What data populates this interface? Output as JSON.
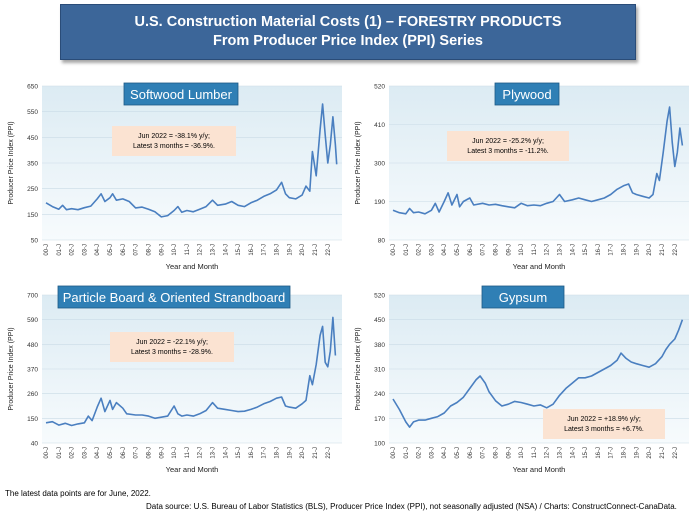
{
  "header": {
    "title_line1": "U.S. Construction Material Costs (1) – FORESTRY PRODUCTS",
    "title_line2": "From Producer Price Index (PPI) Series"
  },
  "footer": {
    "note": "The latest data points are for June, 2022.",
    "source": "Data source: U.S. Bureau of Labor Statistics (BLS), Producer Price Index (PPI), not seasonally adjusted (NSA) / Charts: ConstructConnect-CanaData."
  },
  "colors": {
    "banner": "#3c6699",
    "line": "#4a7fc0",
    "plot_top": "#dcebf3",
    "plot_bottom": "#f7fbfd",
    "title_box": "#2f7fb5",
    "callout": "#fbe3d2"
  },
  "chart_data": [
    {
      "type": "line",
      "title": "Softwood Lumber",
      "xlabel": "Year and Month",
      "ylabel": "Producer Price Index (PPI)",
      "ylim": [
        50,
        650
      ],
      "yticks": [
        "50",
        "150",
        "250",
        "350",
        "450",
        "550",
        "650"
      ],
      "xticks": [
        "00-J",
        "01-J",
        "02-J",
        "03-J",
        "04-J",
        "05-J",
        "06-J",
        "07-J",
        "08-J",
        "09-J",
        "10-J",
        "11-J",
        "12-J",
        "13-J",
        "14-J",
        "15-J",
        "16-J",
        "17-J",
        "18-J",
        "19-J",
        "20-J",
        "21-J",
        "22-J"
      ],
      "callout": [
        "Jun 2022 = -38.1% y/y;",
        "Latest 3 months = -36.9%."
      ],
      "grid": true,
      "series": [
        {
          "values": [
            [
              0,
              195
            ],
            [
              0.5,
              180
            ],
            [
              1,
              170
            ],
            [
              1.3,
              185
            ],
            [
              1.6,
              168
            ],
            [
              2,
              172
            ],
            [
              2.5,
              168
            ],
            [
              3,
              176
            ],
            [
              3.5,
              182
            ],
            [
              4,
              210
            ],
            [
              4.3,
              230
            ],
            [
              4.6,
              200
            ],
            [
              5,
              215
            ],
            [
              5.2,
              230
            ],
            [
              5.5,
              205
            ],
            [
              6,
              210
            ],
            [
              6.5,
              200
            ],
            [
              7,
              175
            ],
            [
              7.5,
              178
            ],
            [
              8,
              170
            ],
            [
              8.5,
              160
            ],
            [
              9,
              140
            ],
            [
              9.5,
              145
            ],
            [
              10,
              165
            ],
            [
              10.3,
              180
            ],
            [
              10.6,
              158
            ],
            [
              11,
              165
            ],
            [
              11.5,
              160
            ],
            [
              12,
              170
            ],
            [
              12.5,
              180
            ],
            [
              13,
              205
            ],
            [
              13.4,
              185
            ],
            [
              14,
              190
            ],
            [
              14.5,
              200
            ],
            [
              15,
              185
            ],
            [
              15.5,
              180
            ],
            [
              16,
              195
            ],
            [
              16.5,
              205
            ],
            [
              17,
              220
            ],
            [
              17.5,
              230
            ],
            [
              18,
              245
            ],
            [
              18.4,
              275
            ],
            [
              18.7,
              230
            ],
            [
              19,
              215
            ],
            [
              19.5,
              210
            ],
            [
              20,
              225
            ],
            [
              20.3,
              260
            ],
            [
              20.6,
              240
            ],
            [
              20.8,
              395
            ],
            [
              21.1,
              300
            ],
            [
              21.4,
              480
            ],
            [
              21.6,
              580
            ],
            [
              21.8,
              460
            ],
            [
              22,
              350
            ],
            [
              22.2,
              420
            ],
            [
              22.4,
              530
            ],
            [
              22.6,
              420
            ],
            [
              22.7,
              345
            ]
          ]
        }
      ]
    },
    {
      "type": "line",
      "title": "Plywood",
      "xlabel": "Year and Month",
      "ylabel": "Producer Price Index (PPI)",
      "ylim": [
        80,
        520
      ],
      "yticks": [
        "80",
        "190",
        "300",
        "410",
        "520"
      ],
      "xticks": [
        "00-J",
        "01-J",
        "02-J",
        "03-J",
        "04-J",
        "05-J",
        "06-J",
        "07-J",
        "08-J",
        "09-J",
        "10-J",
        "11-J",
        "12-J",
        "13-J",
        "14-J",
        "15-J",
        "16-J",
        "17-J",
        "18-J",
        "19-J",
        "20-J",
        "21-J",
        "22-J"
      ],
      "callout": [
        "Jun 2022 = -25.2% y/y;",
        "Latest 3 months = -11.2%."
      ],
      "grid": true,
      "series": [
        {
          "values": [
            [
              0,
              165
            ],
            [
              0.5,
              158
            ],
            [
              1,
              155
            ],
            [
              1.3,
              170
            ],
            [
              1.6,
              158
            ],
            [
              2,
              160
            ],
            [
              2.5,
              155
            ],
            [
              3,
              165
            ],
            [
              3.3,
              185
            ],
            [
              3.6,
              160
            ],
            [
              4,
              190
            ],
            [
              4.3,
              215
            ],
            [
              4.6,
              180
            ],
            [
              5,
              210
            ],
            [
              5.2,
              175
            ],
            [
              5.5,
              190
            ],
            [
              6,
              200
            ],
            [
              6.3,
              180
            ],
            [
              7,
              185
            ],
            [
              7.5,
              180
            ],
            [
              8,
              182
            ],
            [
              8.5,
              178
            ],
            [
              9,
              175
            ],
            [
              9.5,
              172
            ],
            [
              10,
              185
            ],
            [
              10.5,
              178
            ],
            [
              11,
              180
            ],
            [
              11.5,
              178
            ],
            [
              12,
              185
            ],
            [
              12.5,
              190
            ],
            [
              13,
              210
            ],
            [
              13.4,
              190
            ],
            [
              14,
              195
            ],
            [
              14.5,
              200
            ],
            [
              15,
              195
            ],
            [
              15.5,
              190
            ],
            [
              16,
              195
            ],
            [
              16.5,
              200
            ],
            [
              17,
              210
            ],
            [
              17.5,
              225
            ],
            [
              18,
              235
            ],
            [
              18.4,
              240
            ],
            [
              18.7,
              215
            ],
            [
              19,
              210
            ],
            [
              19.5,
              205
            ],
            [
              20,
              200
            ],
            [
              20.3,
              210
            ],
            [
              20.6,
              270
            ],
            [
              20.8,
              250
            ],
            [
              21.1,
              330
            ],
            [
              21.4,
              420
            ],
            [
              21.6,
              460
            ],
            [
              21.8,
              360
            ],
            [
              22,
              290
            ],
            [
              22.2,
              330
            ],
            [
              22.4,
              400
            ],
            [
              22.6,
              350
            ]
          ]
        }
      ]
    },
    {
      "type": "line",
      "title": "Particle Board & Oriented Strandboard",
      "xlabel": "Year and Month",
      "ylabel": "Producer Price Index (PPI)",
      "ylim": [
        40,
        700
      ],
      "yticks": [
        "40",
        "150",
        "260",
        "370",
        "480",
        "590",
        "700"
      ],
      "xticks": [
        "00-J",
        "01-J",
        "02-J",
        "03-J",
        "04-J",
        "05-J",
        "06-J",
        "07-J",
        "08-J",
        "09-J",
        "10-J",
        "11-J",
        "12-J",
        "13-J",
        "14-J",
        "15-J",
        "16-J",
        "17-J",
        "18-J",
        "19-J",
        "20-J",
        "21-J",
        "22-J"
      ],
      "callout": [
        "Jun 2022 = -22.1% y/y;",
        "Latest 3 months = -28.9%."
      ],
      "grid": true,
      "series": [
        {
          "values": [
            [
              0,
              130
            ],
            [
              0.5,
              135
            ],
            [
              1,
              120
            ],
            [
              1.5,
              128
            ],
            [
              2,
              118
            ],
            [
              2.5,
              125
            ],
            [
              3,
              130
            ],
            [
              3.3,
              160
            ],
            [
              3.6,
              140
            ],
            [
              4,
              200
            ],
            [
              4.3,
              240
            ],
            [
              4.6,
              180
            ],
            [
              5,
              230
            ],
            [
              5.2,
              190
            ],
            [
              5.5,
              220
            ],
            [
              6,
              195
            ],
            [
              6.3,
              170
            ],
            [
              7,
              165
            ],
            [
              7.5,
              165
            ],
            [
              8,
              160
            ],
            [
              8.5,
              150
            ],
            [
              9,
              155
            ],
            [
              9.5,
              160
            ],
            [
              10,
              205
            ],
            [
              10.3,
              170
            ],
            [
              10.6,
              160
            ],
            [
              11,
              165
            ],
            [
              11.5,
              160
            ],
            [
              12,
              170
            ],
            [
              12.5,
              185
            ],
            [
              13,
              220
            ],
            [
              13.4,
              195
            ],
            [
              14,
              190
            ],
            [
              14.5,
              185
            ],
            [
              15,
              180
            ],
            [
              15.5,
              182
            ],
            [
              16,
              190
            ],
            [
              16.5,
              200
            ],
            [
              17,
              215
            ],
            [
              17.5,
              225
            ],
            [
              18,
              240
            ],
            [
              18.4,
              245
            ],
            [
              18.7,
              205
            ],
            [
              19,
              200
            ],
            [
              19.5,
              195
            ],
            [
              20,
              215
            ],
            [
              20.3,
              230
            ],
            [
              20.6,
              340
            ],
            [
              20.8,
              300
            ],
            [
              21.1,
              390
            ],
            [
              21.4,
              520
            ],
            [
              21.6,
              560
            ],
            [
              21.8,
              400
            ],
            [
              22,
              380
            ],
            [
              22.2,
              450
            ],
            [
              22.4,
              600
            ],
            [
              22.6,
              430
            ]
          ]
        }
      ]
    },
    {
      "type": "line",
      "title": "Gypsum",
      "xlabel": "Year and Month",
      "ylabel": "Producer Price Index (PPI)",
      "ylim": [
        100,
        520
      ],
      "yticks": [
        "100",
        "170",
        "240",
        "310",
        "380",
        "450",
        "520"
      ],
      "xticks": [
        "00-J",
        "01-J",
        "02-J",
        "03-J",
        "04-J",
        "05-J",
        "06-J",
        "07-J",
        "08-J",
        "09-J",
        "10-J",
        "11-J",
        "12-J",
        "13-J",
        "14-J",
        "15-J",
        "16-J",
        "17-J",
        "18-J",
        "19-J",
        "20-J",
        "21-J",
        "22-J"
      ],
      "callout": [
        "Jun 2022 = +18.9% y/y;",
        "Latest 3 months = +6.7%."
      ],
      "grid": true,
      "series": [
        {
          "values": [
            [
              0,
              225
            ],
            [
              0.5,
              195
            ],
            [
              1,
              160
            ],
            [
              1.3,
              145
            ],
            [
              1.6,
              160
            ],
            [
              2,
              165
            ],
            [
              2.5,
              165
            ],
            [
              3,
              170
            ],
            [
              3.5,
              175
            ],
            [
              4,
              185
            ],
            [
              4.5,
              205
            ],
            [
              5,
              215
            ],
            [
              5.5,
              230
            ],
            [
              6,
              255
            ],
            [
              6.5,
              280
            ],
            [
              6.8,
              290
            ],
            [
              7.2,
              270
            ],
            [
              7.5,
              245
            ],
            [
              8,
              220
            ],
            [
              8.5,
              205
            ],
            [
              9,
              210
            ],
            [
              9.5,
              218
            ],
            [
              10,
              215
            ],
            [
              10.5,
              210
            ],
            [
              11,
              205
            ],
            [
              11.5,
              208
            ],
            [
              12,
              200
            ],
            [
              12.5,
              210
            ],
            [
              13,
              235
            ],
            [
              13.5,
              255
            ],
            [
              14,
              270
            ],
            [
              14.5,
              285
            ],
            [
              15,
              285
            ],
            [
              15.5,
              290
            ],
            [
              16,
              300
            ],
            [
              16.5,
              310
            ],
            [
              17,
              320
            ],
            [
              17.5,
              335
            ],
            [
              17.8,
              355
            ],
            [
              18.2,
              340
            ],
            [
              18.6,
              330
            ],
            [
              19,
              325
            ],
            [
              19.5,
              320
            ],
            [
              20,
              315
            ],
            [
              20.5,
              325
            ],
            [
              21,
              345
            ],
            [
              21.3,
              365
            ],
            [
              21.6,
              380
            ],
            [
              22,
              395
            ],
            [
              22.3,
              420
            ],
            [
              22.6,
              450
            ]
          ]
        }
      ]
    }
  ]
}
